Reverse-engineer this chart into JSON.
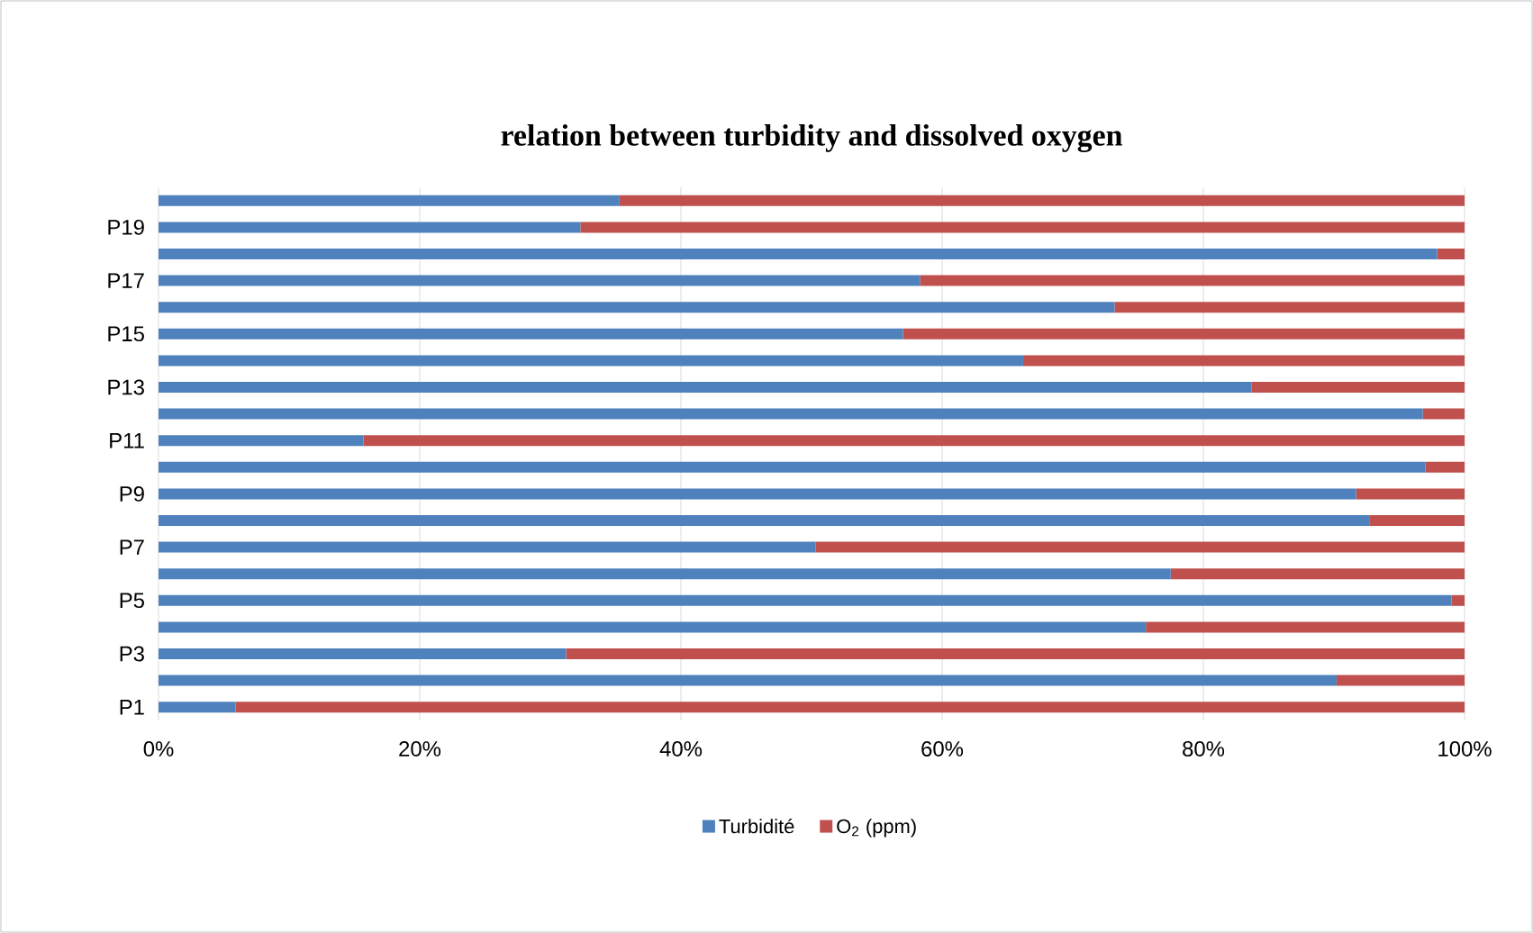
{
  "chart_data": {
    "type": "bar",
    "orientation": "horizontal",
    "stacked": true,
    "title": "relation between turbidity and dissolved oxygen",
    "categories": [
      null,
      "P19",
      null,
      "P17",
      null,
      "P15",
      null,
      "P13",
      null,
      "P11",
      null,
      "P9",
      null,
      "P7",
      null,
      "P5",
      null,
      "P3",
      null,
      "P1"
    ],
    "series": [
      {
        "name": "Turbidité",
        "color": "#4f81bd",
        "values": [
          35.3,
          32.3,
          97.9,
          58.3,
          73.2,
          57.0,
          66.2,
          83.7,
          96.8,
          15.7,
          97.0,
          91.7,
          92.7,
          50.3,
          77.5,
          99.0,
          75.6,
          31.2,
          90.2,
          5.9
        ]
      },
      {
        "name": "O$_{2}$ (ppm)",
        "color": "#c0504d",
        "values": [
          64.7,
          67.7,
          2.1,
          41.7,
          26.8,
          43.0,
          33.8,
          16.3,
          3.2,
          84.3,
          3.0,
          8.3,
          7.3,
          49.7,
          22.5,
          1.0,
          24.4,
          68.8,
          9.8,
          94.1
        ]
      }
    ],
    "xlim": [
      0,
      100
    ],
    "xticks": [
      {
        "value": 0,
        "label": "0%"
      },
      {
        "value": 20,
        "label": "20%"
      },
      {
        "value": 40,
        "label": "40%"
      },
      {
        "value": 60,
        "label": "60%"
      },
      {
        "value": 80,
        "label": "80%"
      },
      {
        "value": 100,
        "label": "100%"
      }
    ],
    "grid": "x",
    "legend": "bottom"
  }
}
